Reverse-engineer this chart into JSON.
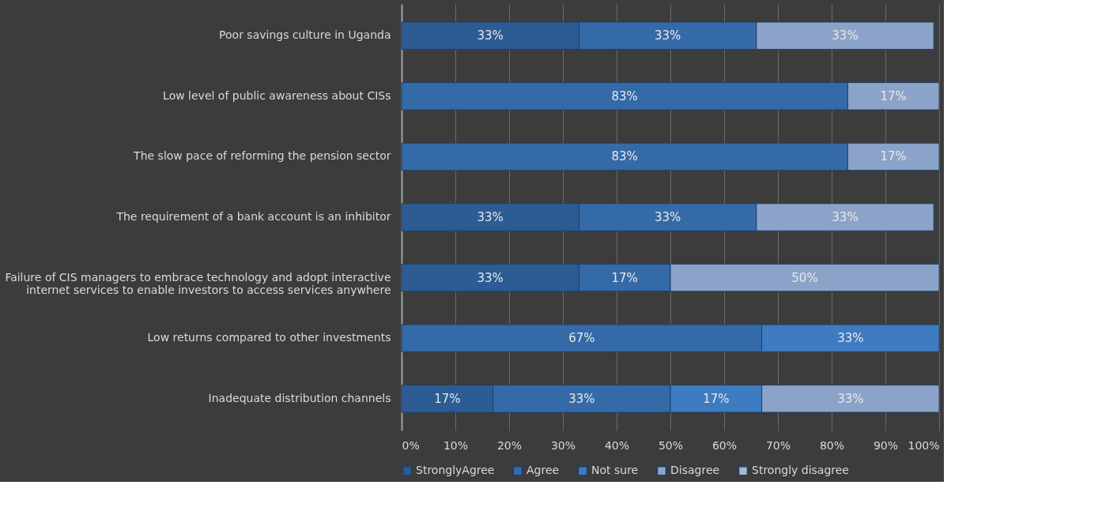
{
  "chart_data": {
    "type": "bar",
    "orientation": "horizontal",
    "stacked": true,
    "categories": [
      "Poor savings culture in Uganda",
      "Low level of public awareness about CISs",
      "The slow pace of reforming the pension sector",
      "The requirement of a bank account is an inhibitor",
      "Failure of CIS managers to embrace technology and adopt interactive internet services to enable investors to access services anywhere",
      "Low returns compared to other investments",
      "Inadequate distribution channels"
    ],
    "series": [
      {
        "name": "StronglyAgree",
        "color": "#2d5b94",
        "values": [
          33,
          null,
          null,
          33,
          33,
          null,
          17
        ],
        "value_labels": [
          "33%",
          null,
          null,
          "33%",
          "33%",
          null,
          "17%"
        ]
      },
      {
        "name": "Agree",
        "color": "#356aa8",
        "values": [
          33,
          83,
          83,
          33,
          17,
          67,
          33
        ],
        "value_labels": [
          "33%",
          "83%",
          "83%",
          "33%",
          "17%",
          "67%",
          "33%"
        ]
      },
      {
        "name": "Not sure",
        "color": "#3f7bc0",
        "values": [
          null,
          null,
          null,
          null,
          null,
          33,
          17
        ],
        "value_labels": [
          null,
          null,
          null,
          null,
          null,
          "33%",
          "17%"
        ]
      },
      {
        "name": "Disagree",
        "color": "#8ca3c9",
        "values": [
          33,
          17,
          17,
          33,
          50,
          null,
          33
        ],
        "value_labels": [
          "33%",
          "17%",
          "17%",
          "33%",
          "50%",
          null,
          "33%"
        ]
      },
      {
        "name": "Strongly disagree",
        "color": "#a8b6cf",
        "values": [
          null,
          null,
          null,
          null,
          null,
          null,
          null
        ]
      }
    ],
    "xlim": [
      0,
      100
    ],
    "xticks": [
      {
        "value": 0,
        "label": "0%"
      },
      {
        "value": 10,
        "label": "10%"
      },
      {
        "value": 20,
        "label": "20%"
      },
      {
        "value": 30,
        "label": "30%"
      },
      {
        "value": 40,
        "label": "40%"
      },
      {
        "value": 50,
        "label": "50%"
      },
      {
        "value": 60,
        "label": "60%"
      },
      {
        "value": 70,
        "label": "70%"
      },
      {
        "value": 80,
        "label": "80%"
      },
      {
        "value": 90,
        "label": "90%"
      },
      {
        "value": 100,
        "label": "100%"
      }
    ],
    "grid": "x",
    "legend": "bottom"
  }
}
